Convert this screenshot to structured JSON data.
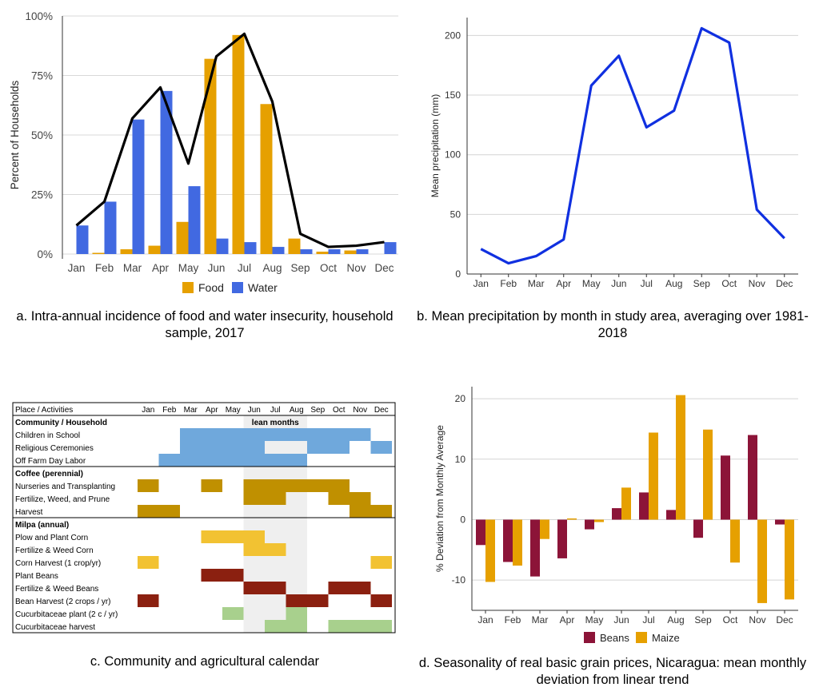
{
  "months": [
    "Jan",
    "Feb",
    "Mar",
    "Apr",
    "May",
    "Jun",
    "Jul",
    "Aug",
    "Sep",
    "Oct",
    "Nov",
    "Dec"
  ],
  "colors": {
    "food": "#E6A000",
    "water": "#4169E1",
    "line": "#000000",
    "precip": "#1030E0",
    "beans": "#8C1438",
    "maize": "#E6A000",
    "blue": "#6FA8DC",
    "coffee": "#C09000",
    "yellow": "#F2C232",
    "brown": "#8B2010",
    "green": "#A8D08D",
    "lean": "#EFEFEF"
  },
  "chart_data": [
    {
      "type": "bar",
      "caption": "a. Intra-annual incidence of food and water insecurity, household sample, 2017",
      "ylabel": "Percent of Households",
      "ylim": [
        0,
        100
      ],
      "yticks": [
        "0%",
        "25%",
        "50%",
        "75%",
        "100%"
      ],
      "ytick_values": [
        0,
        25,
        50,
        75,
        100
      ],
      "categories": [
        "Jan",
        "Feb",
        "Mar",
        "Apr",
        "May",
        "Jun",
        "Jul",
        "Aug",
        "Sep",
        "Oct",
        "Nov",
        "Dec"
      ],
      "series": [
        {
          "name": "Food",
          "values": [
            0,
            0.5,
            2,
            3.5,
            13.5,
            82,
            92,
            63,
            6.5,
            1,
            1.5,
            0
          ]
        },
        {
          "name": "Water",
          "values": [
            12,
            22,
            56.5,
            68.5,
            28.5,
            6.5,
            5,
            3,
            2,
            2,
            2,
            5
          ]
        }
      ],
      "line": {
        "values": [
          12,
          22,
          57,
          70,
          38,
          83,
          92.5,
          64,
          8.5,
          3,
          3.5,
          5
        ]
      },
      "legend": "bottom"
    },
    {
      "type": "line",
      "caption": "b. Mean precipitation by month in study area, averaging over 1981-2018",
      "ylabel": "Mean precipitation (mm)",
      "ylim": [
        0,
        215
      ],
      "yticks": [
        "0",
        "50",
        "100",
        "150",
        "200"
      ],
      "ytick_values": [
        0,
        50,
        100,
        150,
        200
      ],
      "categories": [
        "Jan",
        "Feb",
        "Mar",
        "Apr",
        "May",
        "Jun",
        "Jul",
        "Aug",
        "Sep",
        "Oct",
        "Nov",
        "Dec"
      ],
      "values": [
        21,
        9,
        15,
        29,
        158,
        183,
        123,
        137,
        206,
        194,
        54,
        30
      ]
    },
    {
      "type": "table",
      "caption": "c. Community and agricultural calendar",
      "header": "Place / Activities",
      "lean_label": "lean months",
      "lean_months": [
        5,
        6,
        7
      ],
      "sections": [
        {
          "title": "Community / Household",
          "rows": [
            {
              "label": "Children in School",
              "color": "blue",
              "spans": [
                [
                  2,
                  10
                ]
              ]
            },
            {
              "label": "Religious Ceremonies",
              "color": "blue",
              "spans": [
                [
                  2,
                  5
                ],
                [
                  8,
                  9
                ],
                [
                  11,
                  11
                ]
              ]
            },
            {
              "label": "Off Farm Day Labor",
              "color": "blue",
              "spans": [
                [
                  1,
                  7
                ]
              ]
            }
          ]
        },
        {
          "title": "Coffee (perennial)",
          "rows": [
            {
              "label": "Nurseries and Transplanting",
              "color": "coffee",
              "spans": [
                [
                  0,
                  0
                ],
                [
                  3,
                  3
                ],
                [
                  5,
                  9
                ]
              ]
            },
            {
              "label": "Fertilize, Weed, and Prune",
              "color": "coffee",
              "spans": [
                [
                  5,
                  6
                ],
                [
                  9,
                  10
                ]
              ]
            },
            {
              "label": "Harvest",
              "color": "coffee",
              "spans": [
                [
                  0,
                  1
                ],
                [
                  10,
                  11
                ]
              ]
            }
          ]
        },
        {
          "title": "Milpa (annual)",
          "rows": [
            {
              "label": "Plow and Plant Corn",
              "color": "yellow",
              "spans": [
                [
                  3,
                  5
                ]
              ]
            },
            {
              "label": "Fertilize & Weed Corn",
              "color": "yellow",
              "spans": [
                [
                  5,
                  6
                ]
              ]
            },
            {
              "label": "Corn Harvest (1 crop/yr)",
              "color": "yellow",
              "spans": [
                [
                  0,
                  0
                ],
                [
                  11,
                  11
                ]
              ]
            },
            {
              "label": "Plant Beans",
              "color": "brown",
              "spans": [
                [
                  3,
                  4
                ]
              ]
            },
            {
              "label": "Fertilize & Weed Beans",
              "color": "brown",
              "spans": [
                [
                  5,
                  6
                ],
                [
                  9,
                  10
                ]
              ]
            },
            {
              "label": "Bean Harvest (2 crops / yr)",
              "color": "brown",
              "spans": [
                [
                  0,
                  0
                ],
                [
                  7,
                  8
                ],
                [
                  11,
                  11
                ]
              ]
            },
            {
              "label": "Cucurbitaceae plant (2 c / yr)",
              "color": "green",
              "spans": [
                [
                  4,
                  4
                ],
                [
                  7,
                  7
                ]
              ]
            },
            {
              "label": "Cucurbitaceae harvest",
              "color": "green",
              "spans": [
                [
                  6,
                  7
                ],
                [
                  9,
                  11
                ]
              ]
            }
          ]
        }
      ]
    },
    {
      "type": "bar",
      "caption": "d. Seasonality of real basic grain prices, Nicaragua: mean monthly deviation from linear trend",
      "ylabel": "% Deviation from Monthly Average",
      "ylim": [
        -15,
        22
      ],
      "yticks": [
        "-10",
        "0",
        "10",
        "20"
      ],
      "ytick_values": [
        -10,
        0,
        10,
        20
      ],
      "categories": [
        "Jan",
        "Feb",
        "Mar",
        "Apr",
        "May",
        "Jun",
        "Jul",
        "Aug",
        "Sep",
        "Oct",
        "Nov",
        "Dec"
      ],
      "series": [
        {
          "name": "Beans",
          "values": [
            -4.2,
            -7,
            -9.4,
            -6.4,
            -1.6,
            1.9,
            4.5,
            1.6,
            -3,
            10.6,
            14,
            -0.8
          ]
        },
        {
          "name": "Maize",
          "values": [
            -10.3,
            -7.6,
            -3.2,
            0.2,
            -0.4,
            5.3,
            14.4,
            20.6,
            14.9,
            -7.1,
            -13.8,
            -13.2
          ]
        }
      ],
      "legend": "bottom"
    }
  ]
}
